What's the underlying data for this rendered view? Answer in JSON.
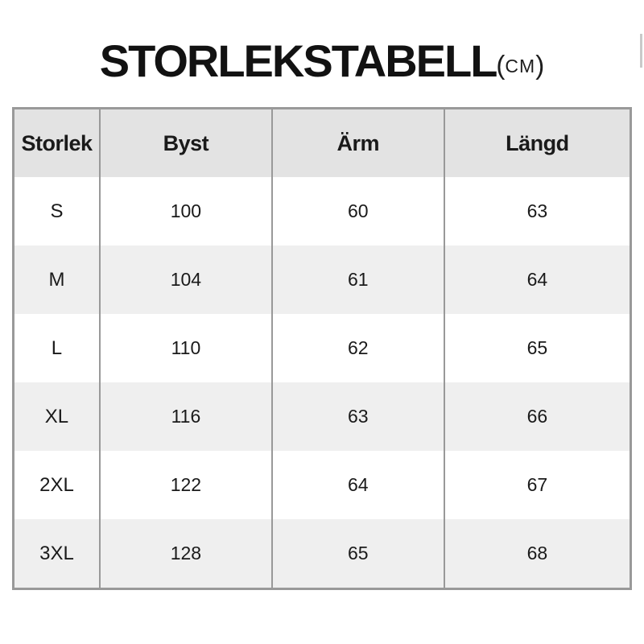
{
  "title": {
    "main": "STORLEKSTABELL",
    "unit_open": "(",
    "unit_label": "CM",
    "unit_close": ")"
  },
  "chart_data": {
    "type": "table",
    "title": "STORLEKSTABELL (CM)",
    "unit": "cm",
    "columns": [
      "Storlek",
      "Byst",
      "Ärm",
      "Längd"
    ],
    "rows": [
      [
        "S",
        100,
        60,
        63
      ],
      [
        "M",
        104,
        61,
        64
      ],
      [
        "L",
        110,
        62,
        65
      ],
      [
        "XL",
        116,
        63,
        66
      ],
      [
        "2XL",
        122,
        64,
        67
      ],
      [
        "3XL",
        128,
        65,
        68
      ]
    ],
    "layout": {
      "header_background": "#e3e3e3",
      "alt_row_background": "#efefef",
      "border_color": "#999999",
      "text_color": "#1a1a1a",
      "page_background": "#ffffff"
    }
  }
}
